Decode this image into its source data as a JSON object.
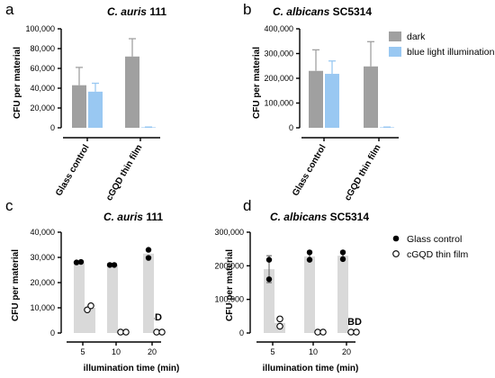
{
  "panels": [
    {
      "label": "a",
      "title_species": "C. auris",
      "title_strain": "111"
    },
    {
      "label": "b",
      "title_species": "C. albicans",
      "title_strain": "SC5314"
    },
    {
      "label": "c",
      "title_species": "C. auris",
      "title_strain": "111"
    },
    {
      "label": "d",
      "title_species": "C. albicans",
      "title_strain": "SC5314"
    }
  ],
  "colors": {
    "dark": "#a0a0a0",
    "blue": "#99c8f2",
    "bar_light": "#d9d9d9",
    "axis": "#000000"
  },
  "legend_top": [
    "dark",
    "blue light illumination"
  ],
  "legend_bottom": [
    "Glass control",
    "cGQD thin film"
  ],
  "bd_label": "BD",
  "chart_data": [
    {
      "type": "bar",
      "panel": "a",
      "categories": [
        "Glass control",
        "cGQD thin film"
      ],
      "ylabel": "CFU per material",
      "ylim": [
        0,
        100000
      ],
      "yticks": [
        0,
        20000,
        40000,
        60000,
        80000,
        100000
      ],
      "ytick_labels": [
        "0",
        "20,000",
        "40,000",
        "60,000",
        "80,000",
        "100,000"
      ],
      "series": [
        {
          "name": "dark",
          "values": [
            43000,
            72000
          ],
          "errors": [
            18000,
            18000
          ]
        },
        {
          "name": "blue light illumination",
          "values": [
            36500,
            500
          ],
          "errors": [
            8500,
            300
          ]
        }
      ]
    },
    {
      "type": "bar",
      "panel": "b",
      "categories": [
        "Glass control",
        "cGQD thin film"
      ],
      "ylabel": "CFU per material",
      "ylim": [
        0,
        400000
      ],
      "yticks": [
        0,
        100000,
        200000,
        300000,
        400000
      ],
      "ytick_labels": [
        "0",
        "100,000",
        "200,000",
        "300,000",
        "400,000"
      ],
      "series": [
        {
          "name": "dark",
          "values": [
            230000,
            248000
          ],
          "errors": [
            85000,
            100000
          ]
        },
        {
          "name": "blue light illumination",
          "values": [
            218000,
            2000
          ],
          "errors": [
            52000,
            1000
          ]
        }
      ]
    },
    {
      "type": "bar",
      "panel": "c",
      "x": [
        5,
        10,
        20
      ],
      "xlabel": "illumination time (min)",
      "ylabel": "CFU per material",
      "ylim": [
        0,
        40000
      ],
      "yticks": [
        0,
        10000,
        20000,
        30000,
        40000
      ],
      "ytick_labels": [
        "0",
        "10,000",
        "20,000",
        "30,000",
        "40,000"
      ],
      "series": [
        {
          "name": "Glass control",
          "values": [
            28000,
            27000,
            31500
          ],
          "points": [
            [
              28000,
              28200
            ],
            [
              27000,
              27000
            ],
            [
              29800,
              33000
            ]
          ]
        },
        {
          "name": "cGQD thin film",
          "values": [
            10000,
            0,
            0
          ],
          "points": [
            [
              9200,
              10800
            ],
            [
              0,
              0
            ],
            [
              0,
              0
            ]
          ],
          "below_detection": [
            false,
            false,
            true
          ]
        }
      ]
    },
    {
      "type": "bar",
      "panel": "d",
      "x": [
        5,
        10,
        20
      ],
      "xlabel": "illumination time (min)",
      "ylabel": "CFU per material",
      "ylim": [
        0,
        300000
      ],
      "yticks": [
        0,
        100000,
        200000,
        300000
      ],
      "ytick_labels": [
        "0",
        "100,000",
        "200,000",
        "300,000"
      ],
      "series": [
        {
          "name": "Glass control",
          "values": [
            190000,
            228000,
            230000
          ],
          "errors": [
            40000,
            12000,
            12000
          ],
          "points": [
            [
              218000,
              160000
            ],
            [
              240000,
              218000
            ],
            [
              240000,
              220000
            ]
          ]
        },
        {
          "name": "cGQD thin film",
          "values": [
            30000,
            0,
            0
          ],
          "points": [
            [
              42000,
              20000
            ],
            [
              0,
              0
            ],
            [
              0,
              0
            ]
          ],
          "below_detection": [
            false,
            false,
            true
          ]
        }
      ]
    }
  ]
}
